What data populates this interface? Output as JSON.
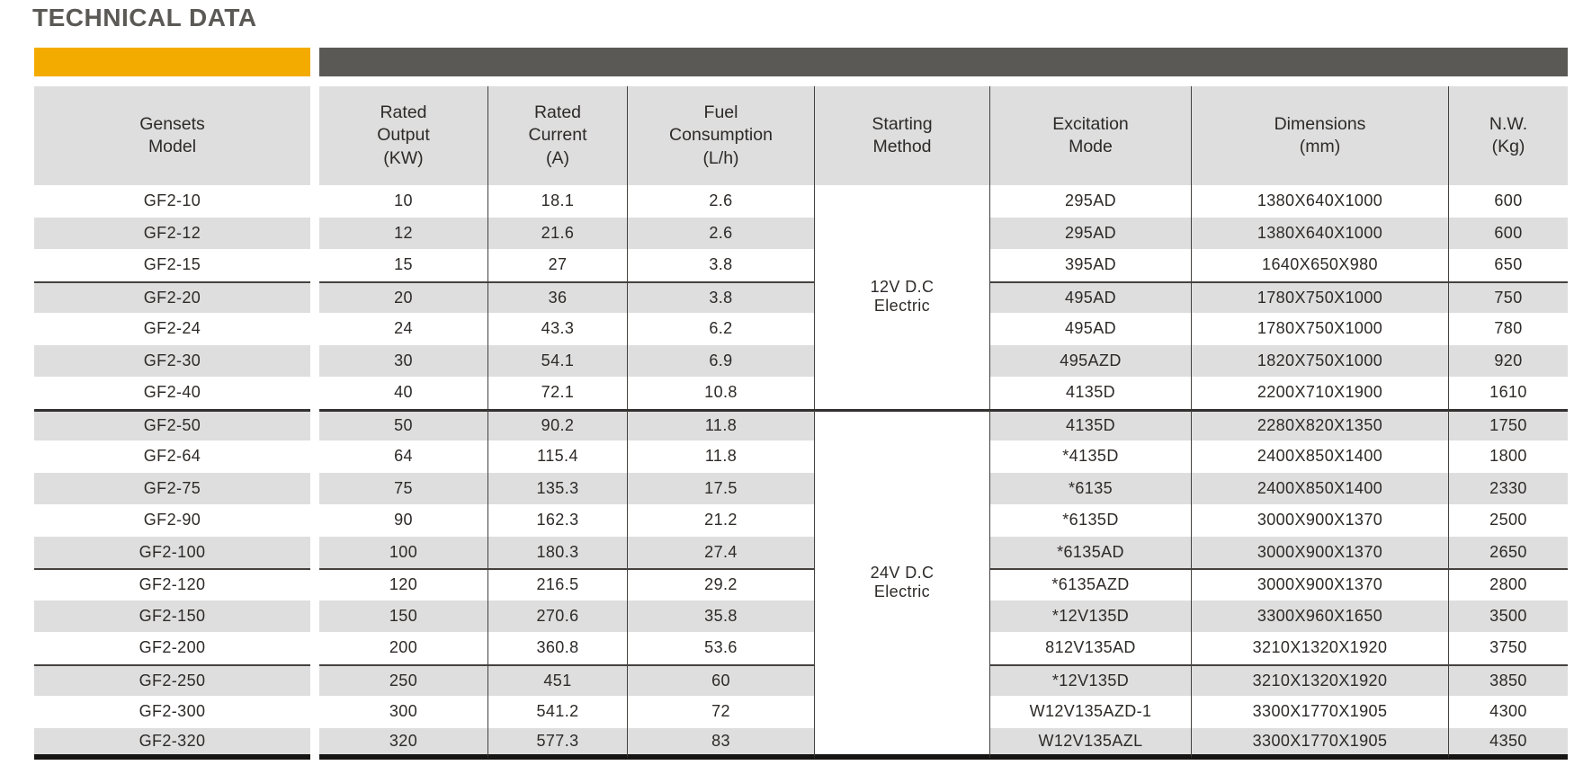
{
  "title": "TECHNICAL DATA",
  "colors": {
    "accent_orange": "#F4AB00",
    "accent_dark": "#5B5955",
    "header_gray": "#DEDEDE",
    "stripe_gray": "#DEDEDE",
    "line_dark": "#44413F",
    "bottom_line": "#171514",
    "text": "#2D2A28"
  },
  "table": {
    "headers": {
      "model": "Gensets\nModel",
      "output": "Rated\nOutput\n(KW)",
      "current": "Rated\nCurrent\n(A)",
      "fuel": "Fuel\nConsumption\n(L/h)",
      "starting": "Starting\nMethod",
      "excitation": "Excitation\nMode",
      "dimensions": "Dimensions\n(mm)",
      "nw": "N.W.\n(Kg)"
    },
    "starting_groups": [
      {
        "label": "12V D.C\nElectric",
        "rows": 7
      },
      {
        "label": "24V D.C\nElectric",
        "rows": 11
      }
    ],
    "rows": [
      {
        "model": "GF2-10",
        "output": "10",
        "current": "18.1",
        "fuel": "2.6",
        "excitation": "295AD",
        "dimensions": "1380X640X1000",
        "nw": "600"
      },
      {
        "model": "GF2-12",
        "output": "12",
        "current": "21.6",
        "fuel": "2.6",
        "excitation": "295AD",
        "dimensions": "1380X640X1000",
        "nw": "600"
      },
      {
        "model": "GF2-15",
        "output": "15",
        "current": "27",
        "fuel": "3.8",
        "excitation": "395AD",
        "dimensions": "1640X650X980",
        "nw": "650"
      },
      {
        "model": "GF2-20",
        "output": "20",
        "current": "36",
        "fuel": "3.8",
        "excitation": "495AD",
        "dimensions": "1780X750X1000",
        "nw": "750"
      },
      {
        "model": "GF2-24",
        "output": "24",
        "current": "43.3",
        "fuel": "6.2",
        "excitation": "495AD",
        "dimensions": "1780X750X1000",
        "nw": "780"
      },
      {
        "model": "GF2-30",
        "output": "30",
        "current": "54.1",
        "fuel": "6.9",
        "excitation": "495AZD",
        "dimensions": "1820X750X1000",
        "nw": "920"
      },
      {
        "model": "GF2-40",
        "output": "40",
        "current": "72.1",
        "fuel": "10.8",
        "excitation": "4135D",
        "dimensions": "2200X710X1900",
        "nw": "1610"
      },
      {
        "model": "GF2-50",
        "output": "50",
        "current": "90.2",
        "fuel": "11.8",
        "excitation": "4135D",
        "dimensions": "2280X820X1350",
        "nw": "1750"
      },
      {
        "model": "GF2-64",
        "output": "64",
        "current": "115.4",
        "fuel": "11.8",
        "excitation": "*4135D",
        "dimensions": "2400X850X1400",
        "nw": "1800"
      },
      {
        "model": "GF2-75",
        "output": "75",
        "current": "135.3",
        "fuel": "17.5",
        "excitation": "*6135",
        "dimensions": "2400X850X1400",
        "nw": "2330"
      },
      {
        "model": "GF2-90",
        "output": "90",
        "current": "162.3",
        "fuel": "21.2",
        "excitation": "*6135D",
        "dimensions": "3000X900X1370",
        "nw": "2500"
      },
      {
        "model": "GF2-100",
        "output": "100",
        "current": "180.3",
        "fuel": "27.4",
        "excitation": "*6135AD",
        "dimensions": "3000X900X1370",
        "nw": "2650"
      },
      {
        "model": "GF2-120",
        "output": "120",
        "current": "216.5",
        "fuel": "29.2",
        "excitation": "*6135AZD",
        "dimensions": "3000X900X1370",
        "nw": "2800"
      },
      {
        "model": "GF2-150",
        "output": "150",
        "current": "270.6",
        "fuel": "35.8",
        "excitation": "*12V135D",
        "dimensions": "3300X960X1650",
        "nw": "3500"
      },
      {
        "model": "GF2-200",
        "output": "200",
        "current": "360.8",
        "fuel": "53.6",
        "excitation": "812V135AD",
        "dimensions": "3210X1320X1920",
        "nw": "3750"
      },
      {
        "model": "GF2-250",
        "output": "250",
        "current": "451",
        "fuel": "60",
        "excitation": "*12V135D",
        "dimensions": "3210X1320X1920",
        "nw": "3850"
      },
      {
        "model": "GF2-300",
        "output": "300",
        "current": "541.2",
        "fuel": "72",
        "excitation": "W12V135AZD-1",
        "dimensions": "3300X1770X1905",
        "nw": "4300"
      },
      {
        "model": "GF2-320",
        "output": "320",
        "current": "577.3",
        "fuel": "83",
        "excitation": "W12V135AZL",
        "dimensions": "3300X1770X1905",
        "nw": "4350"
      }
    ],
    "subgroup_separator_rows": [
      3,
      12,
      15
    ],
    "group_separator_row": 7
  }
}
